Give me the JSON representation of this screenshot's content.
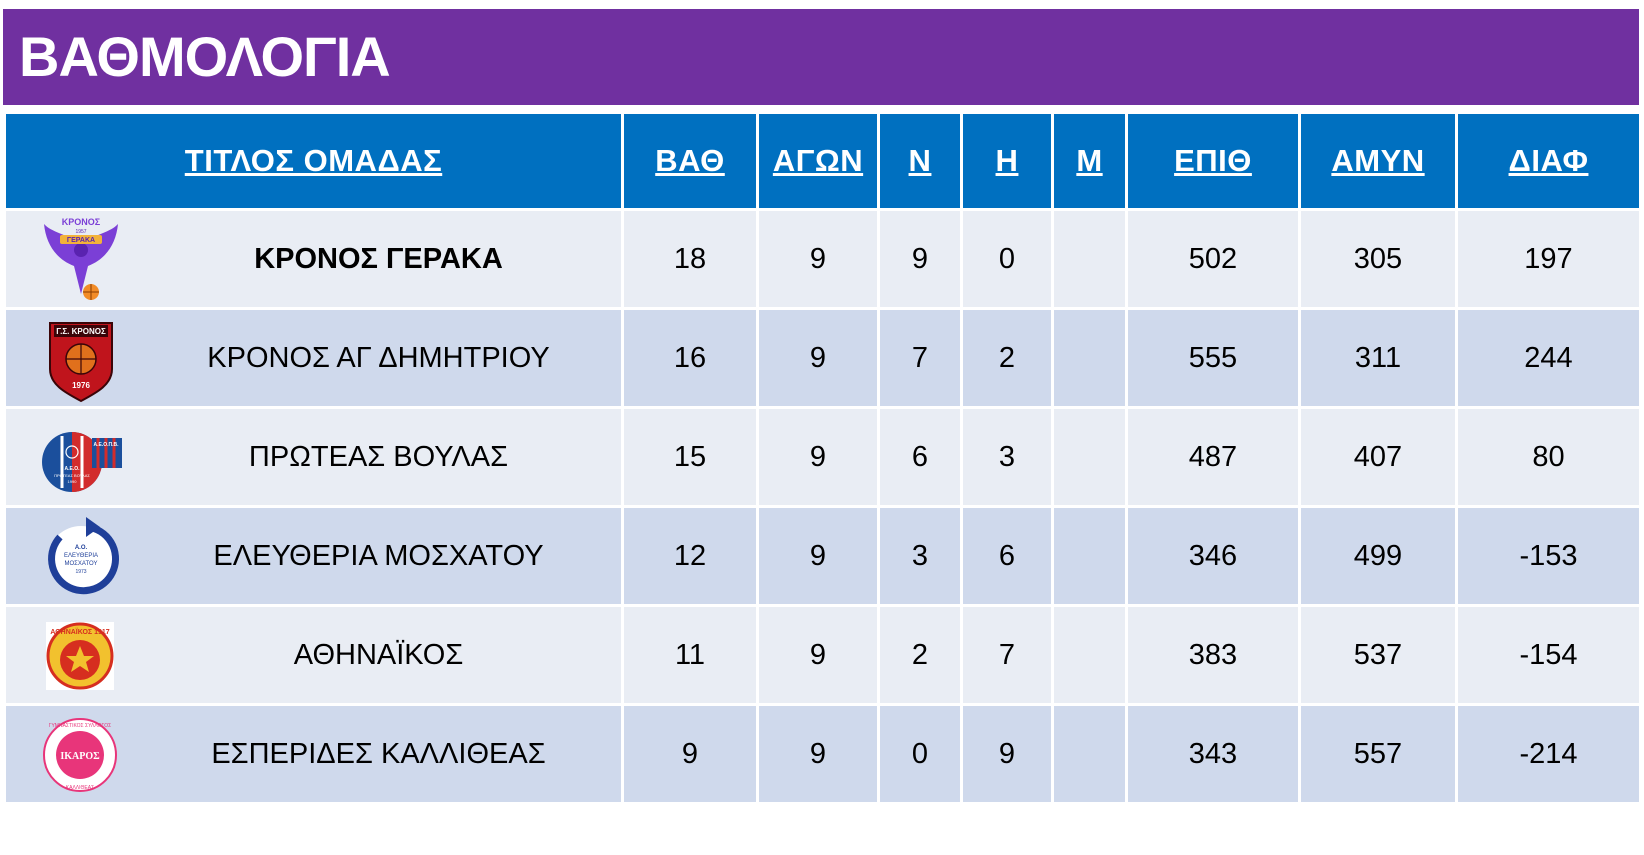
{
  "title": "ΒΑΘΜΟΛΟΓΙΑ",
  "headers": {
    "team": "ΤΙΤΛΟΣ ΟΜΑΔΑΣ",
    "points": "ΒΑΘ",
    "games": "ΑΓΩΝ",
    "wins": "Ν",
    "losses": "Η",
    "m": "Μ",
    "for": "ΕΠΙΘ",
    "against": "ΑΜΥΝ",
    "diff": "ΔΙΑΦ"
  },
  "rows": [
    {
      "team": "ΚΡΟΝΟΣ ΓΕΡΑΚΑ",
      "points": "18",
      "games": "9",
      "wins": "9",
      "losses": "0",
      "m": "",
      "for": "502",
      "against": "305",
      "diff": "197",
      "logo": "kronos-geraka-logo",
      "logo_text": [
        "ΚΡΟΝΟΣ",
        "1957",
        "ΓΕΡΑΚΑ"
      ],
      "logo_color": "#7b3fd6"
    },
    {
      "team": "ΚΡΟΝΟΣ ΑΓ ΔΗΜΗΤΡΙΟΥ",
      "points": "16",
      "games": "9",
      "wins": "7",
      "losses": "2",
      "m": "",
      "for": "555",
      "against": "311",
      "diff": "244",
      "logo": "kronos-ag-dimitriou-logo",
      "logo_text": [
        "Γ.Σ. ΚΡΟΝΟΣ",
        "1976"
      ],
      "logo_color": "#c0141c"
    },
    {
      "team": "ΠΡΩΤΕΑΣ ΒΟΥΛΑΣ",
      "points": "15",
      "games": "9",
      "wins": "6",
      "losses": "3",
      "m": "",
      "for": "487",
      "against": "407",
      "diff": "80",
      "logo": "proteas-voulas-logo",
      "logo_text": [
        "Α.Ε.Ο.Π.Β.",
        "Α.Ε.Ο.",
        "ΠΡΩΤΕΑΣ ΒΟΥΛΑΣ",
        "1990"
      ],
      "logo_color": "#1b4f9c"
    },
    {
      "team": "ΕΛΕΥΘΕΡΙΑ ΜΟΣΧΑΤΟΥ",
      "points": "12",
      "games": "9",
      "wins": "3",
      "losses": "6",
      "m": "",
      "for": "346",
      "against": "499",
      "diff": "-153",
      "logo": "eleftheria-moschatou-logo",
      "logo_text": [
        "Α.Ο.",
        "ΕΛΕΥΘΕΡΙΑ",
        "ΜΟΣΧΑΤΟΥ",
        "1973"
      ],
      "logo_color": "#1f3f99"
    },
    {
      "team": "ΑΘΗΝΑΪΚΟΣ",
      "points": "11",
      "games": "9",
      "wins": "2",
      "losses": "7",
      "m": "",
      "for": "383",
      "against": "537",
      "diff": "-154",
      "logo": "athinaikos-logo",
      "logo_text": [
        "ΑΘΗΝΑΪΚΟΣ 1917"
      ],
      "logo_color": "#d62e1f"
    },
    {
      "team": "ΕΣΠΕΡΙΔΕΣ ΚΑΛΛΙΘΕΑΣ",
      "points": "9",
      "games": "9",
      "wins": "0",
      "losses": "9",
      "m": "",
      "for": "343",
      "against": "557",
      "diff": "-214",
      "logo": "ikaros-kallitheas-logo",
      "logo_text": [
        "ΓΥΜΝΑΣΤΙΚΟΣ ΣΥΛΛΟΓΟΣ",
        "ΙΚΑΡΟΣ",
        "ΚΑΛΛΙΘΕΑΣ"
      ],
      "logo_color": "#e8357a"
    }
  ]
}
